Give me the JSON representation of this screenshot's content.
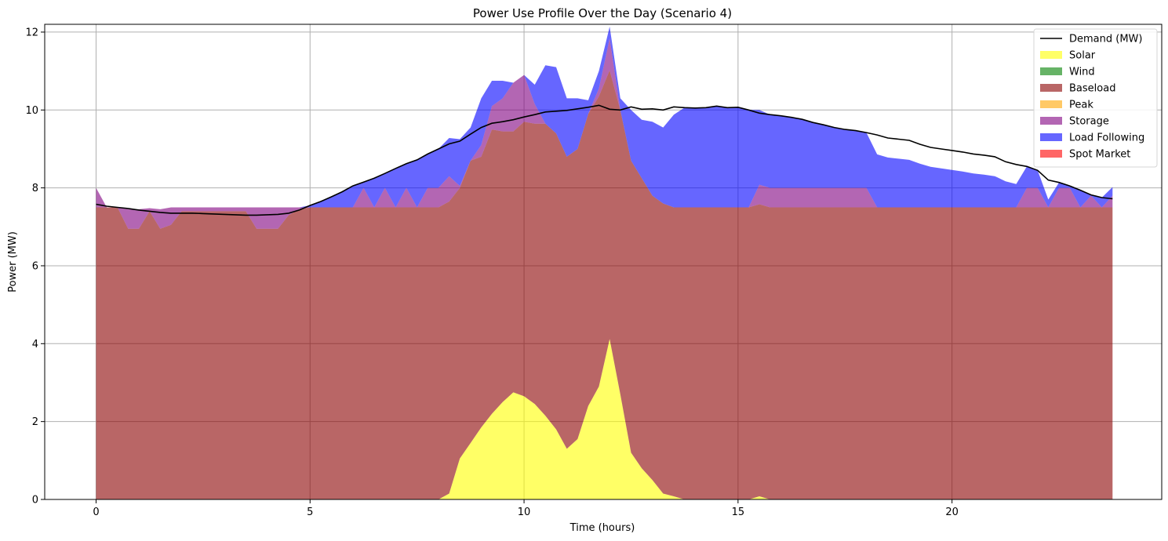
{
  "chart_data": {
    "type": "area",
    "title": "Power Use Profile Over the Day (Scenario 4)",
    "xlabel": "Time (hours)",
    "ylabel": "Power (MW)",
    "xlim": [
      -1.2,
      24.9
    ],
    "ylim": [
      0,
      12.2
    ],
    "xticks": [
      0,
      5,
      10,
      15,
      20
    ],
    "yticks": [
      0,
      2,
      4,
      6,
      8,
      10,
      12
    ],
    "grid": true,
    "legend_position": "top-right",
    "x": [
      0.0,
      0.25,
      0.5,
      0.75,
      1.0,
      1.25,
      1.5,
      1.75,
      2.0,
      2.25,
      2.5,
      2.75,
      3.0,
      3.25,
      3.5,
      3.75,
      4.0,
      4.25,
      4.5,
      4.75,
      5.0,
      5.25,
      5.5,
      5.75,
      6.0,
      6.25,
      6.5,
      6.75,
      7.0,
      7.25,
      7.5,
      7.75,
      8.0,
      8.25,
      8.5,
      8.75,
      9.0,
      9.25,
      9.5,
      9.75,
      10.0,
      10.25,
      10.5,
      10.75,
      11.0,
      11.25,
      11.5,
      11.75,
      12.0,
      12.25,
      12.5,
      12.75,
      13.0,
      13.25,
      13.5,
      13.75,
      14.0,
      14.25,
      14.5,
      14.75,
      15.0,
      15.25,
      15.5,
      15.75,
      16.0,
      16.25,
      16.5,
      16.75,
      17.0,
      17.25,
      17.5,
      17.75,
      18.0,
      18.25,
      18.5,
      18.75,
      19.0,
      19.25,
      19.5,
      19.75,
      20.0,
      20.25,
      20.5,
      20.75,
      21.0,
      21.25,
      21.5,
      21.75,
      22.0,
      22.25,
      22.5,
      22.75,
      23.0,
      23.25,
      23.5,
      23.75
    ],
    "demand": {
      "name": "Demand (MW)",
      "values": [
        7.58,
        7.53,
        7.5,
        7.47,
        7.43,
        7.4,
        7.37,
        7.35,
        7.35,
        7.35,
        7.34,
        7.33,
        7.32,
        7.31,
        7.3,
        7.3,
        7.31,
        7.32,
        7.35,
        7.43,
        7.55,
        7.65,
        7.77,
        7.9,
        8.05,
        8.15,
        8.25,
        8.37,
        8.5,
        8.62,
        8.72,
        8.87,
        9.0,
        9.13,
        9.2,
        9.38,
        9.55,
        9.66,
        9.7,
        9.75,
        9.82,
        9.88,
        9.95,
        9.97,
        9.99,
        10.03,
        10.07,
        10.12,
        10.02,
        10.0,
        10.08,
        10.02,
        10.03,
        10.0,
        10.08,
        10.06,
        10.05,
        10.06,
        10.1,
        10.06,
        10.07,
        10.0,
        9.92,
        9.88,
        9.85,
        9.81,
        9.76,
        9.68,
        9.62,
        9.55,
        9.5,
        9.47,
        9.42,
        9.36,
        9.28,
        9.25,
        9.22,
        9.12,
        9.04,
        9.0,
        8.96,
        8.92,
        8.87,
        8.84,
        8.8,
        8.67,
        8.6,
        8.55,
        8.45,
        8.2,
        8.14,
        8.05,
        7.94,
        7.82,
        7.75,
        7.72
      ]
    },
    "series": [
      {
        "name": "Solar",
        "color": "#ffff00",
        "values": [
          0,
          0,
          0,
          0,
          0,
          0,
          0,
          0,
          0,
          0,
          0,
          0,
          0,
          0,
          0,
          0,
          0,
          0,
          0,
          0,
          0,
          0,
          0,
          0,
          0,
          0,
          0,
          0,
          0,
          0,
          0,
          0,
          0,
          0.15,
          1.05,
          1.45,
          1.85,
          2.2,
          2.5,
          2.75,
          2.65,
          2.45,
          2.15,
          1.8,
          1.3,
          1.55,
          2.4,
          2.9,
          4.12,
          2.7,
          1.2,
          0.8,
          0.5,
          0.15,
          0.08,
          0,
          0,
          0,
          0,
          0,
          0,
          0,
          0.08,
          0,
          0,
          0,
          0,
          0,
          0,
          0,
          0,
          0,
          0,
          0,
          0,
          0,
          0,
          0,
          0,
          0,
          0,
          0,
          0,
          0,
          0,
          0,
          0,
          0,
          0,
          0,
          0,
          0,
          0,
          0,
          0,
          0
        ]
      },
      {
        "name": "Wind",
        "color": "#008000",
        "values": [
          0,
          0,
          0,
          0,
          0,
          0,
          0,
          0,
          0,
          0,
          0,
          0,
          0,
          0,
          0,
          0,
          0,
          0,
          0,
          0,
          0,
          0,
          0,
          0,
          0,
          0,
          0,
          0,
          0,
          0,
          0,
          0,
          0,
          0,
          0,
          0,
          0,
          0,
          0,
          0,
          0,
          0,
          0,
          0,
          0,
          0,
          0,
          0,
          0,
          0,
          0,
          0,
          0,
          0,
          0,
          0,
          0,
          0,
          0,
          0,
          0,
          0,
          0,
          0,
          0,
          0,
          0,
          0,
          0,
          0,
          0,
          0,
          0,
          0,
          0,
          0,
          0,
          0,
          0,
          0,
          0,
          0,
          0,
          0,
          0,
          0,
          0,
          0,
          0,
          0,
          0,
          0,
          0,
          0,
          0,
          0
        ]
      },
      {
        "name": "Baseload",
        "color": "#8b0000",
        "values": [
          7.5,
          7.5,
          7.5,
          6.95,
          6.95,
          7.4,
          6.95,
          7.05,
          7.4,
          7.4,
          7.4,
          7.4,
          7.4,
          7.4,
          7.4,
          6.95,
          6.95,
          6.95,
          7.3,
          7.45,
          7.5,
          7.5,
          7.5,
          7.5,
          7.5,
          7.5,
          7.5,
          7.5,
          7.5,
          7.5,
          7.5,
          7.5,
          7.5,
          7.5,
          6.95,
          7.25,
          6.95,
          7.3,
          6.95,
          6.7,
          7.05,
          7.2,
          7.5,
          7.6,
          7.5,
          7.45,
          7.5,
          7.45,
          6.9,
          7.3,
          7.5,
          7.45,
          7.3,
          7.45,
          7.42,
          7.5,
          7.5,
          7.5,
          7.5,
          7.5,
          7.5,
          7.5,
          7.5,
          7.5,
          7.5,
          7.5,
          7.5,
          7.5,
          7.5,
          7.5,
          7.5,
          7.5,
          7.5,
          7.5,
          7.5,
          7.5,
          7.5,
          7.5,
          7.5,
          7.5,
          7.5,
          7.5,
          7.5,
          7.5,
          7.5,
          7.5,
          7.5,
          7.5,
          7.5,
          7.5,
          7.5,
          7.5,
          7.5,
          7.5,
          7.5,
          7.5
        ]
      },
      {
        "name": "Peak",
        "color": "#ffa500",
        "values": [
          0,
          0,
          0,
          0,
          0,
          0,
          0,
          0,
          0,
          0,
          0,
          0,
          0,
          0,
          0,
          0,
          0,
          0,
          0,
          0,
          0,
          0,
          0,
          0,
          0,
          0,
          0,
          0,
          0,
          0,
          0,
          0,
          0,
          0,
          0,
          0,
          0,
          0,
          0,
          0,
          0,
          0,
          0,
          0,
          0,
          0,
          0,
          0,
          0,
          0,
          0,
          0,
          0,
          0,
          0,
          0,
          0,
          0,
          0,
          0,
          0,
          0,
          0,
          0,
          0,
          0,
          0,
          0,
          0,
          0,
          0,
          0,
          0,
          0,
          0,
          0,
          0,
          0,
          0,
          0,
          0,
          0,
          0,
          0,
          0,
          0,
          0,
          0,
          0,
          0,
          0,
          0,
          0,
          0,
          0,
          0
        ]
      },
      {
        "name": "Storage",
        "color": "#800080",
        "values": [
          0.5,
          0,
          0,
          0.5,
          0.5,
          0.08,
          0.5,
          0.45,
          0.1,
          0.1,
          0.1,
          0.1,
          0.1,
          0.1,
          0.1,
          0.55,
          0.55,
          0.55,
          0.2,
          0.05,
          0,
          0,
          0,
          0,
          0,
          0.5,
          0,
          0.5,
          0,
          0.5,
          0,
          0.5,
          0.5,
          0.65,
          0.05,
          0,
          0.3,
          0.6,
          0.85,
          1.25,
          1.2,
          0.5,
          0,
          0,
          0,
          0,
          0,
          0.2,
          0.82,
          0,
          0,
          0,
          0,
          0,
          0,
          0,
          0,
          0,
          0,
          0,
          0,
          0,
          0.5,
          0.5,
          0.5,
          0.5,
          0.5,
          0.5,
          0.5,
          0.5,
          0.5,
          0.5,
          0.5,
          0,
          0,
          0,
          0,
          0,
          0,
          0,
          0,
          0,
          0,
          0,
          0,
          0,
          0,
          0.5,
          0.5,
          0,
          0.5,
          0.5,
          0,
          0.3,
          0,
          0.3
        ]
      },
      {
        "name": "Load Following",
        "color": "#0000ff",
        "values": [
          0,
          0,
          0,
          0,
          0,
          0,
          0,
          0,
          0,
          0,
          0,
          0,
          0,
          0,
          0,
          0,
          0,
          0,
          0,
          0,
          0.05,
          0.15,
          0.27,
          0.4,
          0.55,
          0.15,
          0.75,
          0.37,
          1.0,
          0.62,
          1.22,
          0.87,
          1.0,
          0.98,
          1.2,
          0.85,
          1.2,
          0.65,
          0.45,
          0,
          0,
          0.5,
          1.5,
          1.7,
          1.5,
          1.3,
          0.35,
          0.45,
          0.3,
          0.3,
          1.3,
          1.5,
          1.9,
          1.95,
          2.38,
          2.56,
          2.55,
          2.56,
          2.6,
          2.56,
          2.57,
          2.5,
          1.92,
          1.88,
          1.85,
          1.81,
          1.76,
          1.68,
          1.62,
          1.55,
          1.5,
          1.47,
          1.42,
          1.36,
          1.28,
          1.25,
          1.22,
          1.12,
          1.04,
          1.0,
          0.96,
          0.92,
          0.87,
          0.84,
          0.8,
          0.67,
          0.6,
          0.55,
          0.45,
          0.2,
          0.14,
          0.05,
          0.44,
          0.02,
          0.25,
          0.22
        ]
      },
      {
        "name": "Spot Market",
        "color": "#ff0000",
        "values": [
          0,
          0,
          0,
          0,
          0,
          0,
          0,
          0,
          0,
          0,
          0,
          0,
          0,
          0,
          0,
          0,
          0,
          0,
          0,
          0,
          0,
          0,
          0,
          0,
          0,
          0,
          0,
          0,
          0,
          0,
          0,
          0,
          0,
          0,
          0,
          0,
          0,
          0,
          0,
          0,
          0,
          0,
          0,
          0,
          0,
          0,
          0,
          0,
          0,
          0,
          0,
          0,
          0,
          0,
          0,
          0,
          0,
          0,
          0,
          0,
          0,
          0,
          0,
          0,
          0,
          0,
          0,
          0,
          0,
          0,
          0,
          0,
          0,
          0,
          0,
          0,
          0,
          0,
          0,
          0,
          0,
          0,
          0,
          0,
          0,
          0,
          0,
          0,
          0,
          0,
          0,
          0,
          0,
          0,
          0,
          0
        ]
      }
    ]
  }
}
